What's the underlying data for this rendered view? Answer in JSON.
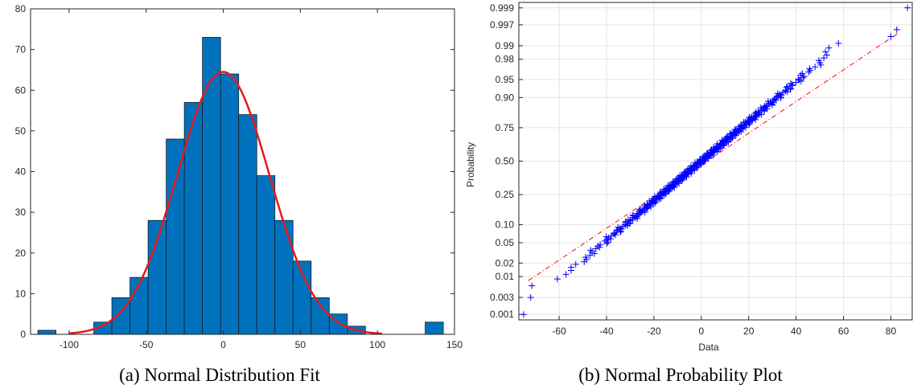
{
  "chart_data": [
    {
      "type": "bar",
      "caption": "(a) Normal Distribution Fit",
      "xlim": [
        -125,
        150
      ],
      "ylim": [
        0,
        80
      ],
      "xticks": [
        -100,
        -50,
        0,
        50,
        100,
        150
      ],
      "yticks": [
        0,
        10,
        20,
        30,
        40,
        50,
        60,
        70,
        80
      ],
      "bin_width": 11.75,
      "bars": [
        {
          "x0": -120.25,
          "value": 1
        },
        {
          "x0": -84.0,
          "value": 3
        },
        {
          "x0": -72.25,
          "value": 9
        },
        {
          "x0": -60.5,
          "value": 14
        },
        {
          "x0": -48.75,
          "value": 28
        },
        {
          "x0": -37.0,
          "value": 48
        },
        {
          "x0": -25.25,
          "value": 57
        },
        {
          "x0": -13.5,
          "value": 73
        },
        {
          "x0": -1.75,
          "value": 64
        },
        {
          "x0": 10.0,
          "value": 54
        },
        {
          "x0": 21.75,
          "value": 39
        },
        {
          "x0": 33.5,
          "value": 28
        },
        {
          "x0": 45.25,
          "value": 18
        },
        {
          "x0": 57.0,
          "value": 9
        },
        {
          "x0": 68.75,
          "value": 5
        },
        {
          "x0": 80.5,
          "value": 2
        },
        {
          "x0": 131.0,
          "value": 3
        }
      ],
      "fit": {
        "mean": 0,
        "sd": 30,
        "peak": 64.5,
        "xrange": [
          -100,
          103
        ]
      },
      "colors": {
        "bar": "#0072BD",
        "fit": "#E31A1C"
      }
    },
    {
      "type": "scatter",
      "caption": "(b) Normal Probability Plot",
      "xlabel": "Data",
      "ylabel": "Probability",
      "xlim": [
        -77,
        89
      ],
      "xticks": [
        -60,
        -40,
        -20,
        0,
        20,
        40,
        60,
        80
      ],
      "yticks": [
        "0.001",
        "0.003",
        "0.01",
        "0.02",
        "0.05",
        "0.10",
        "0.25",
        "0.50",
        "0.75",
        "0.90",
        "0.95",
        "0.98",
        "0.99",
        "0.997",
        "0.999"
      ],
      "grid": true,
      "n_points": 400,
      "mean": 0,
      "sd": 25,
      "extremes": [
        {
          "x": -75,
          "p": 0.001
        },
        {
          "x": -72,
          "p": 0.003
        },
        {
          "x": -71.5,
          "p": 0.006
        },
        {
          "x": 80,
          "p": 0.994
        },
        {
          "x": 82.5,
          "p": 0.996
        },
        {
          "x": 87,
          "p": 0.999
        }
      ],
      "reference_line": {
        "x": [
          -73,
          83
        ],
        "p": [
          0.008,
          0.995
        ]
      },
      "colors": {
        "marker": "#0000FF",
        "line": "#FF0000"
      }
    }
  ]
}
